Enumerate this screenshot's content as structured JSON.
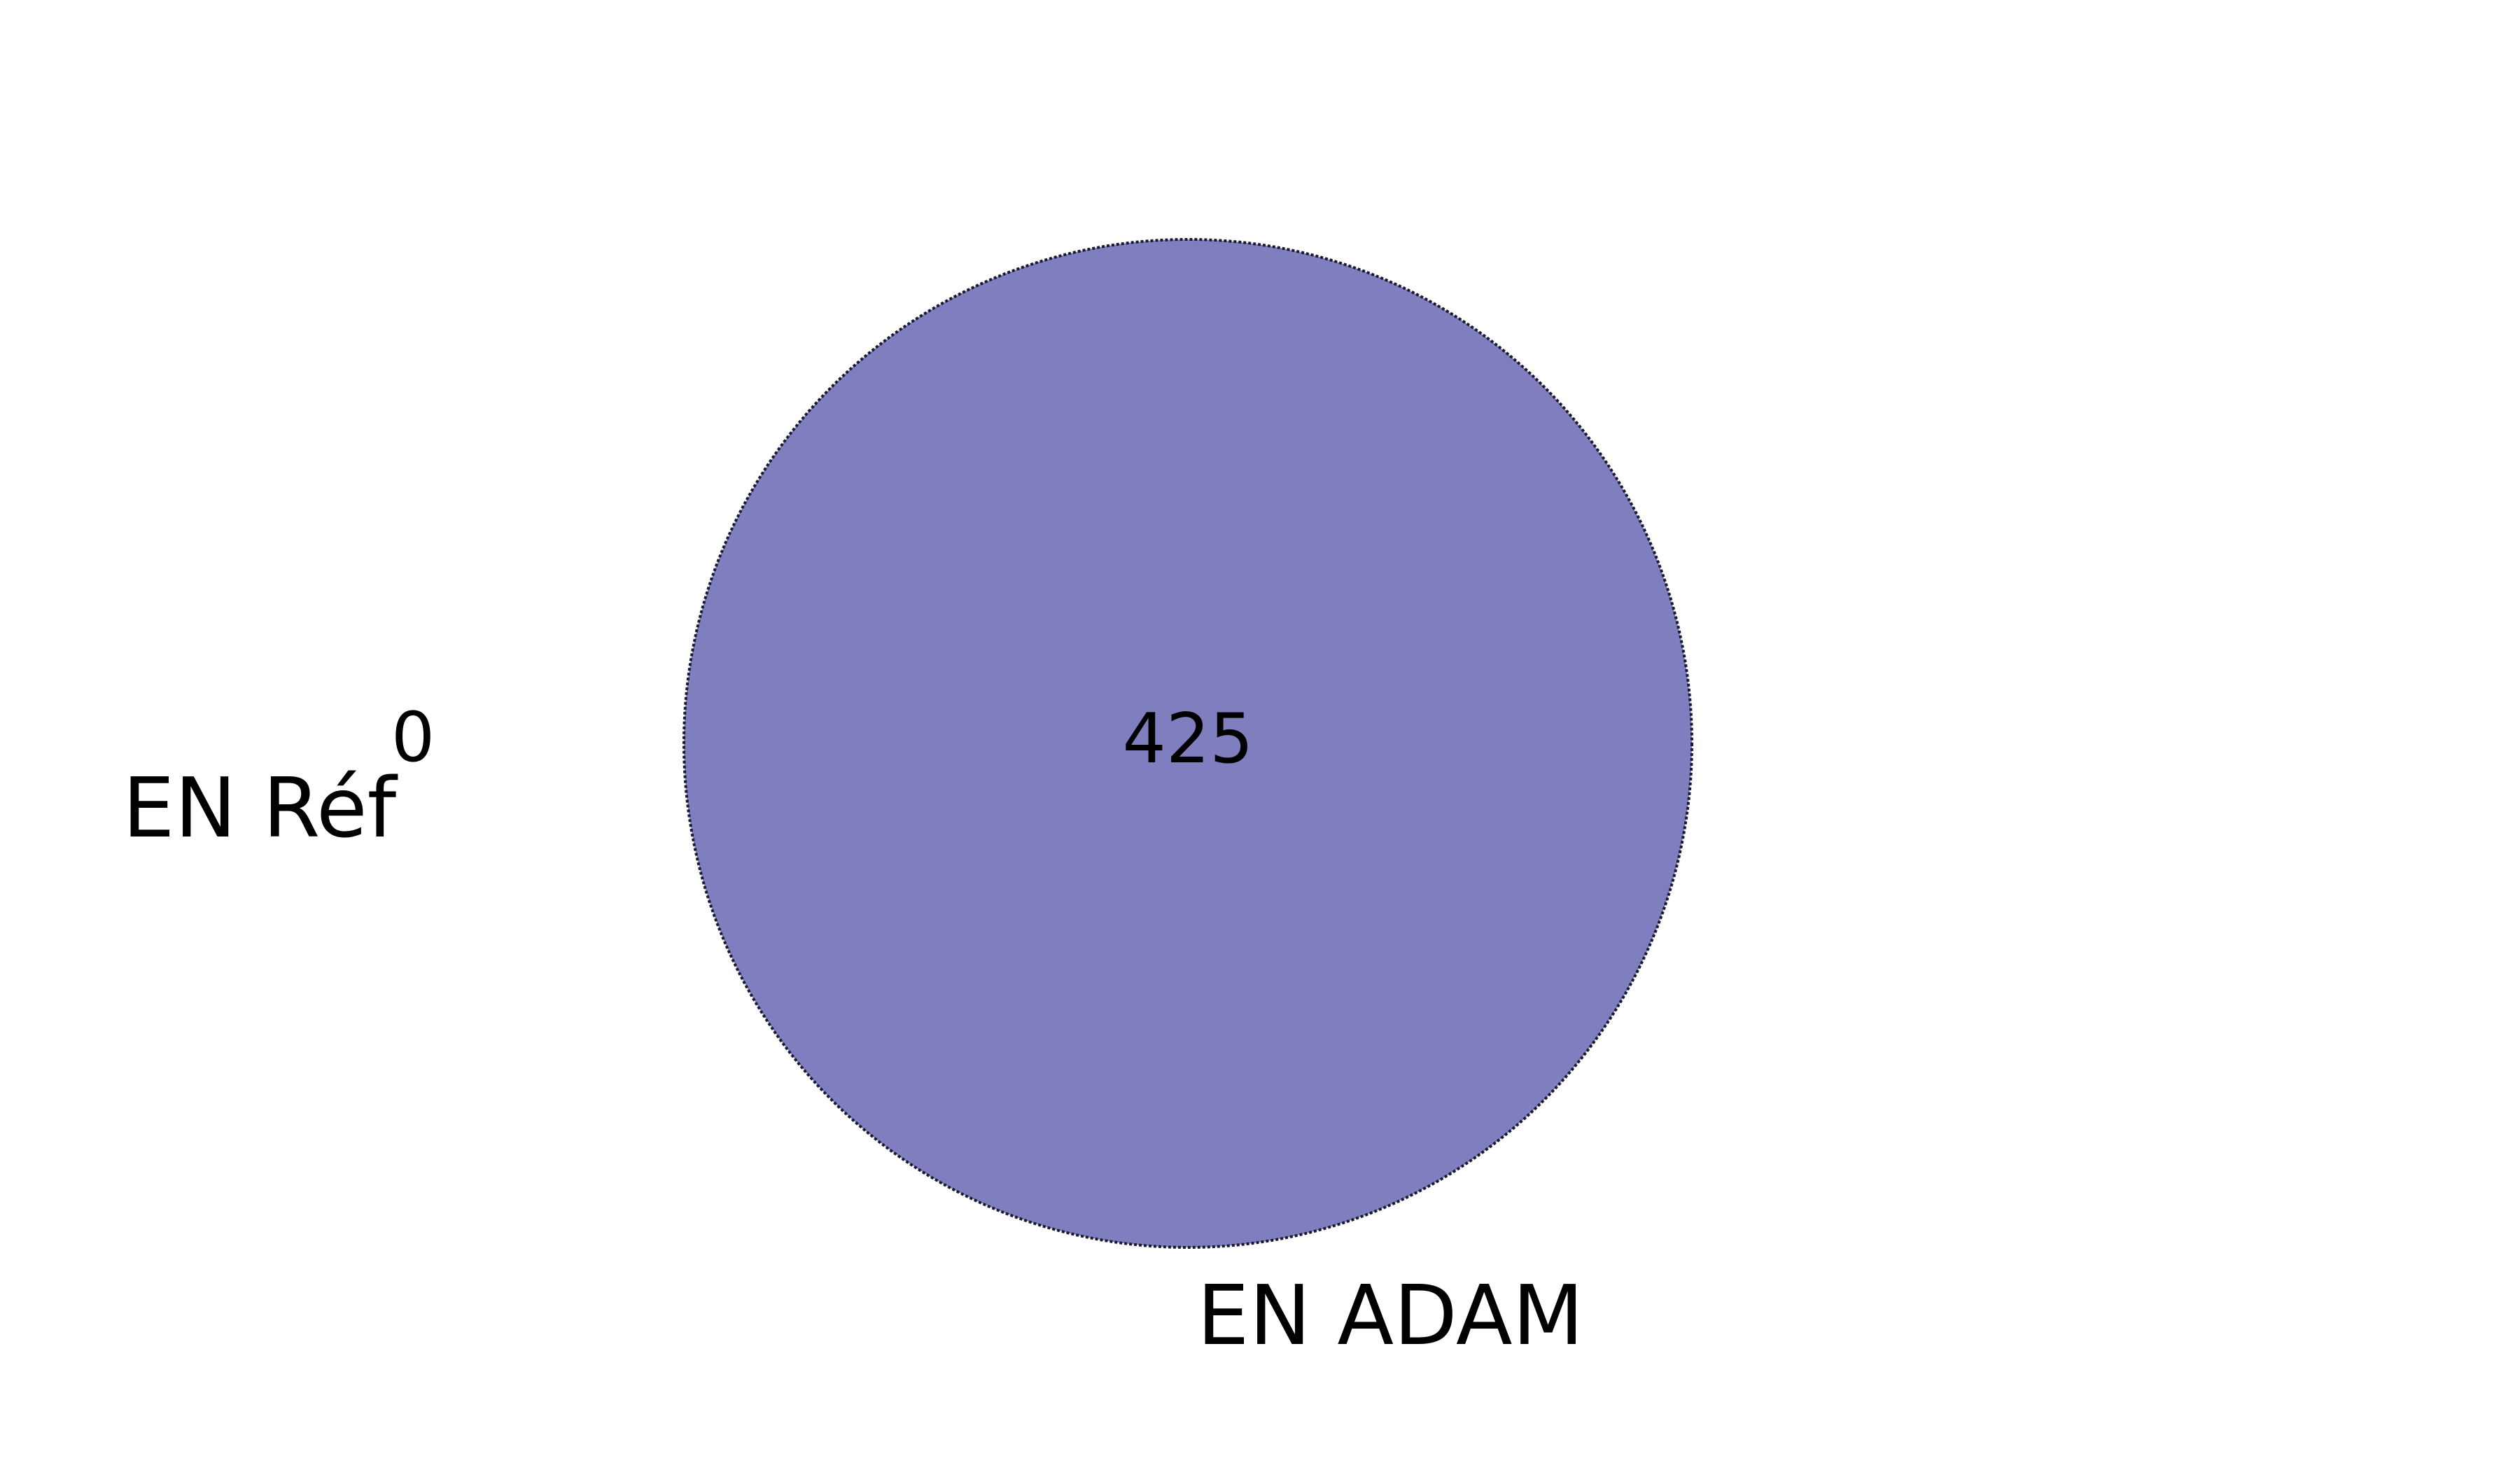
{
  "chart_data": {
    "type": "venn",
    "sets": [
      {
        "name": "EN Réf",
        "only_count": "0",
        "color": "#7f7fbf"
      },
      {
        "name": "EN ADAM",
        "only_count": "425",
        "color": "#7f7fbf"
      }
    ],
    "intersection_count": null,
    "edge_color": "#1a1a2e"
  }
}
